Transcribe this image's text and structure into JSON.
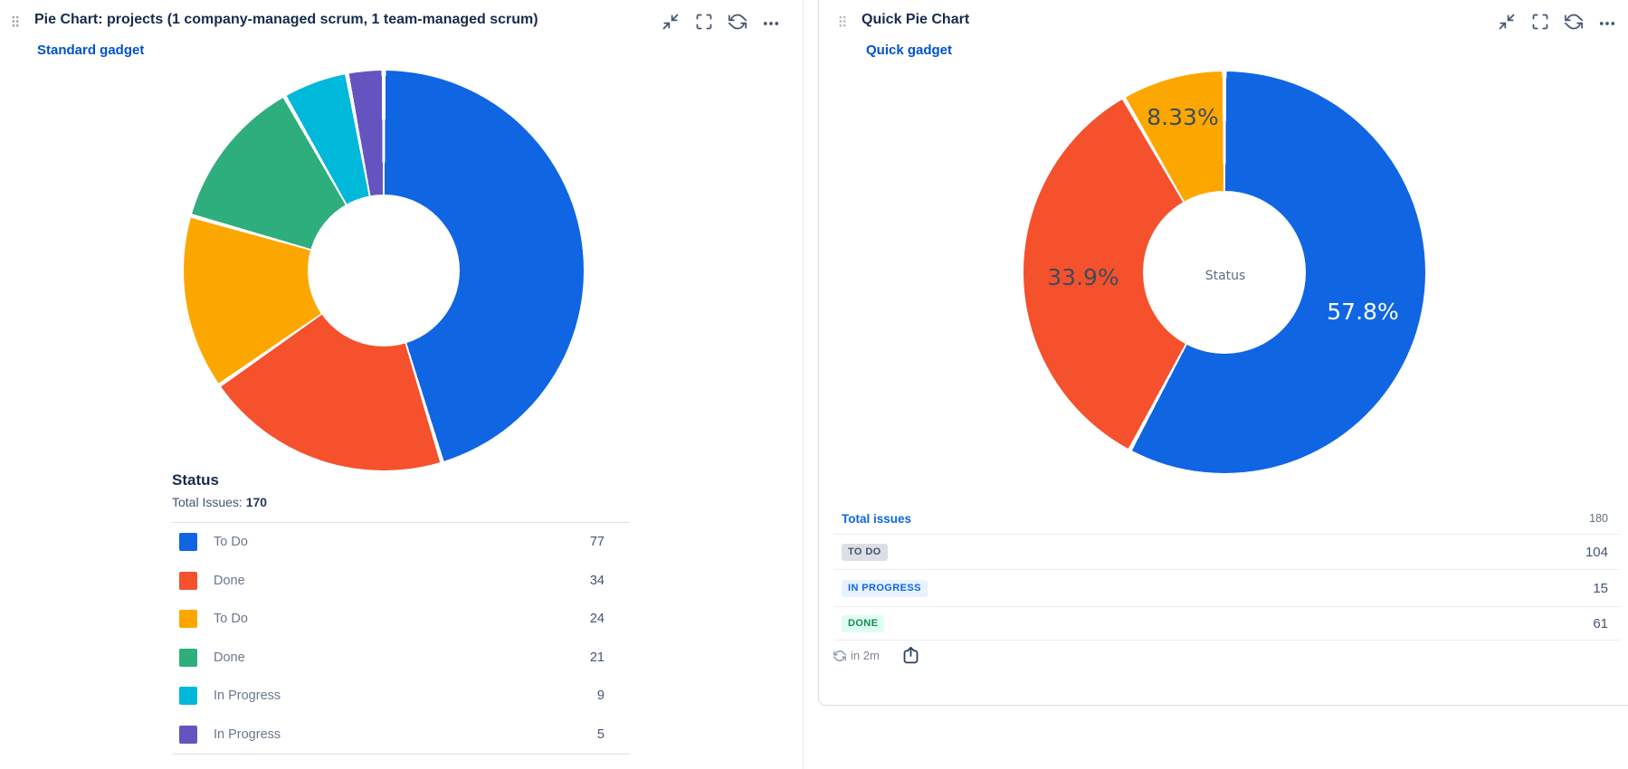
{
  "left_gadget": {
    "title": "Pie Chart: projects (1 company-managed scrum, 1 team-managed scrum)",
    "link": "Standard gadget",
    "legend_heading": "Status",
    "total_label": "Total Issues:",
    "total_value": "170",
    "toolbar_icons": [
      "minimize",
      "fullscreen",
      "refresh",
      "more-options"
    ]
  },
  "right_gadget": {
    "title": "Quick Pie Chart",
    "link": "Quick gadget",
    "center_label": "Status",
    "toolbar_icons": [
      "minimize",
      "fullscreen",
      "refresh",
      "more-options"
    ],
    "table": {
      "total_label": "Total issues",
      "total_value": "180",
      "rows": [
        {
          "badge": "TO DO",
          "value": "104",
          "badge_bg": "#DCDFE4",
          "badge_fg": "#44546F"
        },
        {
          "badge": "IN PROGRESS",
          "value": "15",
          "badge_bg": "#E9F2FF",
          "badge_fg": "#0C66E4"
        },
        {
          "badge": "DONE",
          "value": "61",
          "badge_bg": "#DCFFF1",
          "badge_fg": "#1F845A"
        }
      ]
    },
    "footer": {
      "refresh_in": "in 2m"
    }
  },
  "chart_data": [
    {
      "type": "pie",
      "donut": true,
      "title": "Status",
      "total": 170,
      "labels": "none",
      "legend_position": "bottom",
      "slices": [
        {
          "label": "To Do",
          "value": 77,
          "color": "#1065E3"
        },
        {
          "label": "Done",
          "value": 34,
          "color": "#F4512C"
        },
        {
          "label": "To Do",
          "value": 24,
          "color": "#FCA700"
        },
        {
          "label": "Done",
          "value": 21,
          "color": "#2EAD7D"
        },
        {
          "label": "In Progress",
          "value": 9,
          "color": "#00B8D9"
        },
        {
          "label": "In Progress",
          "value": 5,
          "color": "#6554C0"
        }
      ]
    },
    {
      "type": "pie",
      "donut": true,
      "title": "Status",
      "total": 180,
      "labels": "percent",
      "center_label": "Status",
      "slices": [
        {
          "label": "TO DO",
          "value": 104,
          "color": "#1065E3",
          "pct_label": "57.8%"
        },
        {
          "label": "DONE",
          "value": 61,
          "color": "#F4512C",
          "pct_label": "33.9%"
        },
        {
          "label": "IN PROGRESS",
          "value": 15,
          "color": "#FCA700",
          "pct_label": "8.33%"
        }
      ]
    }
  ],
  "colors": {
    "gadget_link": "#0052CC",
    "table_link": "#0C66E4",
    "icon": "#44546F",
    "row_divider": "#EBECF0"
  }
}
